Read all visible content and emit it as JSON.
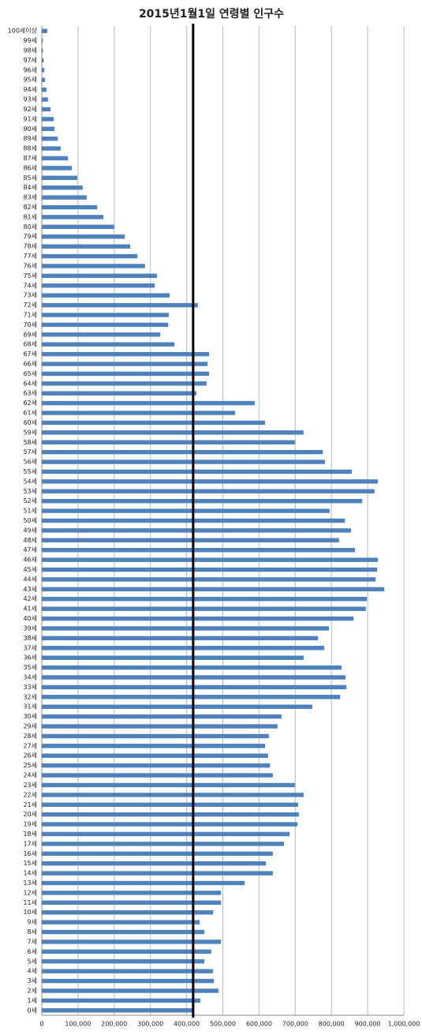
{
  "chart_data": {
    "type": "barh",
    "title": "2015년1월1일 연령별 인구수",
    "categories": [
      "0세",
      "1세",
      "2세",
      "3세",
      "4세",
      "5세",
      "6세",
      "7세",
      "8세",
      "9세",
      "10세",
      "11세",
      "12세",
      "13세",
      "14세",
      "15세",
      "16세",
      "17세",
      "18세",
      "19세",
      "20세",
      "21세",
      "22세",
      "23세",
      "24세",
      "25세",
      "26세",
      "27세",
      "28세",
      "29세",
      "30세",
      "31세",
      "32세",
      "33세",
      "34세",
      "35세",
      "36세",
      "37세",
      "38세",
      "39세",
      "40세",
      "41세",
      "42세",
      "43세",
      "44세",
      "45세",
      "46세",
      "47세",
      "48세",
      "49세",
      "50세",
      "51세",
      "52세",
      "53세",
      "54세",
      "55세",
      "56세",
      "57세",
      "58세",
      "59세",
      "60세",
      "61세",
      "62세",
      "63세",
      "64세",
      "65세",
      "66세",
      "67세",
      "68세",
      "69세",
      "70세",
      "71세",
      "72세",
      "73세",
      "74세",
      "75세",
      "76세",
      "77세",
      "78세",
      "79세",
      "80세",
      "81세",
      "82세",
      "83세",
      "84세",
      "85세",
      "86세",
      "87세",
      "88세",
      "89세",
      "90세",
      "91세",
      "92세",
      "93세",
      "94세",
      "95세",
      "96세",
      "97세",
      "98세",
      "99세",
      "100세이상"
    ],
    "values": [
      418000,
      438000,
      488000,
      475000,
      473000,
      449000,
      468000,
      495000,
      449000,
      436000,
      473000,
      495000,
      495000,
      560000,
      638000,
      619000,
      638000,
      669000,
      684000,
      706000,
      710000,
      708000,
      723000,
      699000,
      638000,
      630000,
      625000,
      617000,
      627000,
      651000,
      662000,
      747000,
      824000,
      841000,
      839000,
      828000,
      723000,
      780000,
      763000,
      793000,
      861000,
      895000,
      898000,
      946000,
      922000,
      926000,
      928000,
      865000,
      821000,
      854000,
      837000,
      795000,
      885000,
      919000,
      928000,
      856000,
      782000,
      776000,
      699000,
      723000,
      617000,
      534000,
      588000,
      427000,
      455000,
      462000,
      458000,
      462000,
      366000,
      327000,
      349000,
      351000,
      431000,
      353000,
      312000,
      318000,
      285000,
      264000,
      244000,
      229000,
      200000,
      170000,
      153000,
      124000,
      113000,
      98000,
      83000,
      72000,
      52000,
      44000,
      35000,
      33000,
      24000,
      17000,
      13000,
      9000,
      7000,
      5000,
      3000,
      3000,
      15000
    ],
    "color": "#4f81bd",
    "xlim": [
      0,
      1000000
    ],
    "xticks": [
      0,
      {
        "value": 100000,
        "label": "100,000"
      },
      {
        "value": 200000,
        "label": "200,000"
      },
      {
        "value": 300000,
        "label": "300,000"
      },
      {
        "value": 400000,
        "label": "400,000"
      },
      {
        "value": 500000,
        "label": "500,000"
      },
      {
        "value": 600000,
        "label": "600,000"
      },
      {
        "value": 700000,
        "label": "700,000"
      },
      {
        "value": 800000,
        "label": "800,000"
      },
      {
        "value": 900000,
        "label": "900,000"
      },
      {
        "value": 1000000,
        "label": "1,000,000"
      }
    ],
    "grid": true,
    "vline": 418000
  }
}
